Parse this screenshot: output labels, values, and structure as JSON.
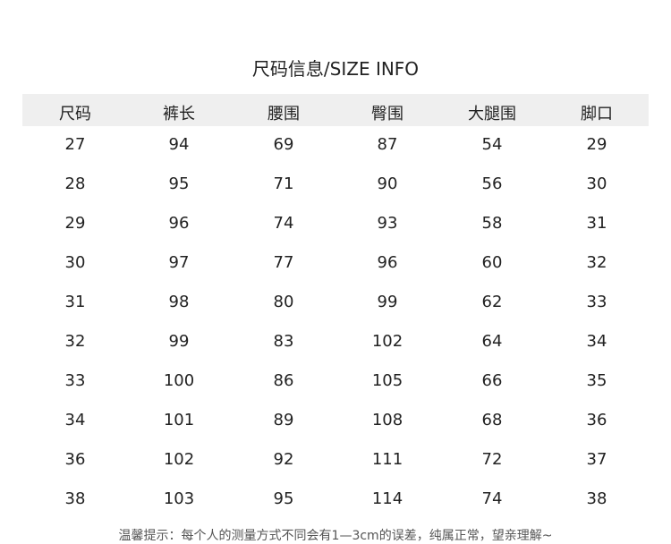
{
  "title": "尺码信息/SIZE INFO",
  "table": {
    "headers": [
      "尺码",
      "裤长",
      "腰围",
      "臀围",
      "大腿围",
      "脚口"
    ],
    "rows": [
      [
        "27",
        "94",
        "69",
        "87",
        "54",
        "29"
      ],
      [
        "28",
        "95",
        "71",
        "90",
        "56",
        "30"
      ],
      [
        "29",
        "96",
        "74",
        "93",
        "58",
        "31"
      ],
      [
        "30",
        "97",
        "77",
        "96",
        "60",
        "32"
      ],
      [
        "31",
        "98",
        "80",
        "99",
        "62",
        "33"
      ],
      [
        "32",
        "99",
        "83",
        "102",
        "64",
        "34"
      ],
      [
        "33",
        "100",
        "86",
        "105",
        "66",
        "35"
      ],
      [
        "34",
        "101",
        "89",
        "108",
        "68",
        "36"
      ],
      [
        "36",
        "102",
        "92",
        "111",
        "72",
        "37"
      ],
      [
        "38",
        "103",
        "95",
        "114",
        "74",
        "38"
      ]
    ]
  },
  "footer_note": "温馨提示：每个人的测量方式不同会有1—3cm的误差，纯属正常，望亲理解~"
}
